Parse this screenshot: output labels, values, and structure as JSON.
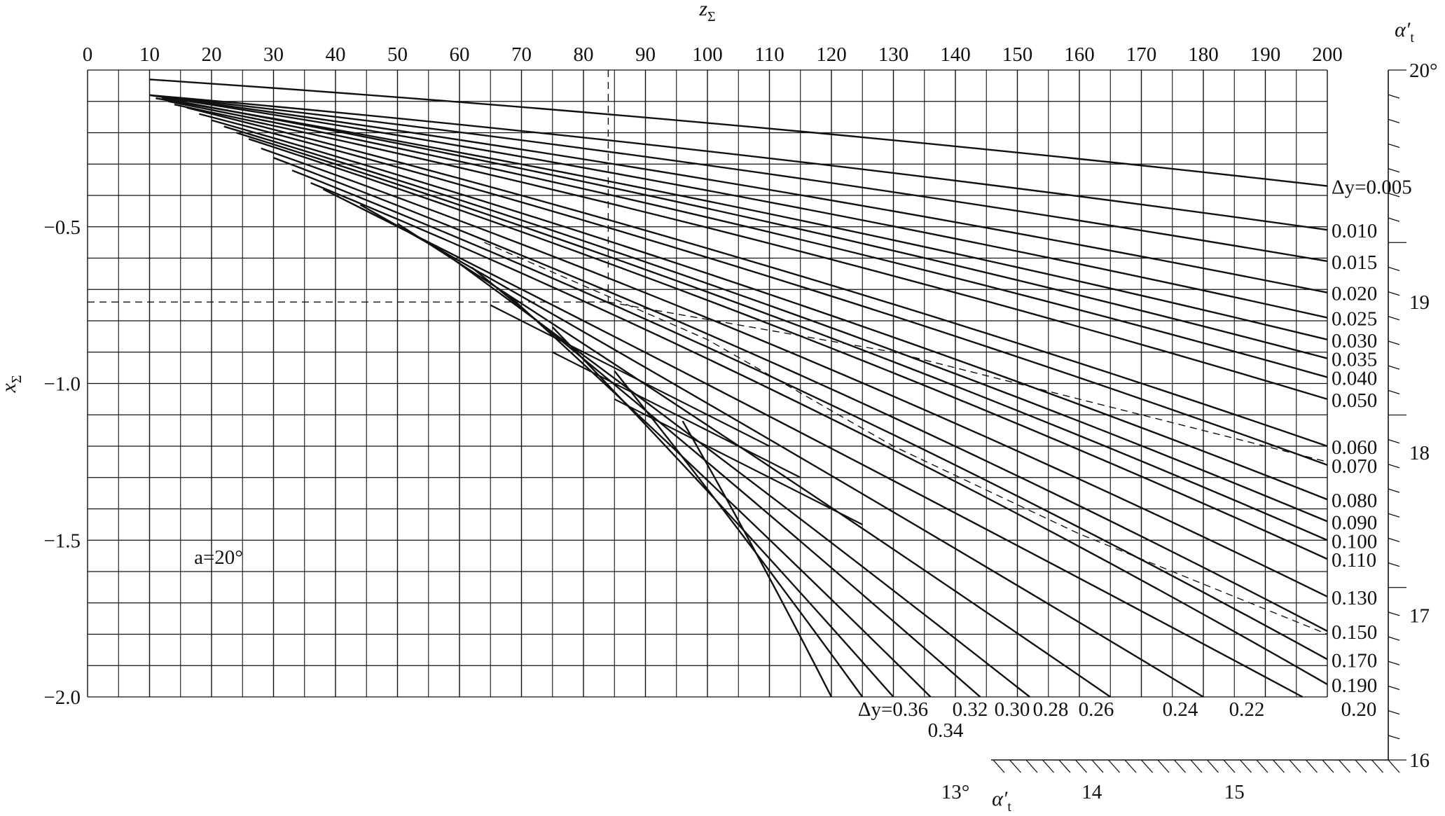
{
  "chart_data": {
    "type": "line",
    "xlabel_main": "z",
    "xlabel_sub": "Σ",
    "ylabel_main": "x",
    "ylabel_sub": "Σ",
    "x_ticks": [
      0,
      10,
      20,
      30,
      40,
      50,
      60,
      70,
      80,
      90,
      100,
      110,
      120,
      130,
      140,
      150,
      160,
      170,
      180,
      190,
      200
    ],
    "y_ticks": [
      {
        "v": -0.5,
        "label": "−0.5"
      },
      {
        "v": -1.0,
        "label": "−1.0"
      },
      {
        "v": -1.5,
        "label": "−1.5"
      },
      {
        "v": -2.0,
        "label": "−2.0"
      }
    ],
    "xlim": [
      0,
      200
    ],
    "ylim": [
      -2.0,
      0.0
    ],
    "grid": true,
    "annotation": "a=20°",
    "right_axis": {
      "label_main": "α′",
      "label_sub": "t",
      "labeled_ticks": [
        {
          "label": "20°",
          "x": 200,
          "y": 0.0
        },
        {
          "label": "19",
          "x": 200,
          "y": -0.74
        },
        {
          "label": "18",
          "x": 200,
          "y": -1.22
        },
        {
          "label": "17",
          "x": 200,
          "y": -1.74
        },
        {
          "label": "16",
          "x": 200,
          "y": -2.2
        }
      ]
    },
    "bottom_axis": {
      "label_main": "α′",
      "label_sub": "t",
      "labeled_ticks": [
        {
          "label": "13°",
          "x": 140,
          "y": -2.24
        },
        {
          "label": "14",
          "x": 162,
          "y": -2.24
        },
        {
          "label": "15",
          "x": 185,
          "y": -2.24
        }
      ]
    },
    "series_right": [
      {
        "label": "Δy=0.005",
        "x0": 10,
        "y0": -0.03,
        "y200": -0.37
      },
      {
        "label": "0.010",
        "x0": 10,
        "y0": -0.08,
        "y200": -0.51
      },
      {
        "label": "0.015",
        "x0": 10,
        "y0": -0.08,
        "y200": -0.61
      },
      {
        "label": "0.020",
        "x0": 10,
        "y0": -0.08,
        "y200": -0.71
      },
      {
        "label": "0.025",
        "x0": 10,
        "y0": -0.08,
        "y200": -0.79
      },
      {
        "label": "0.030",
        "x0": 11,
        "y0": -0.09,
        "y200": -0.86
      },
      {
        "label": "0.035",
        "x0": 12,
        "y0": -0.09,
        "y200": -0.92
      },
      {
        "label": "0.040",
        "x0": 13,
        "y0": -0.1,
        "y200": -0.98
      },
      {
        "label": "0.050",
        "x0": 14,
        "y0": -0.11,
        "y200": -1.05
      },
      {
        "label": "0.060",
        "x0": 16,
        "y0": -0.12,
        "y200": -1.2
      },
      {
        "label": "0.070",
        "x0": 18,
        "y0": -0.14,
        "y200": -1.26
      },
      {
        "label": "0.080",
        "x0": 20,
        "y0": -0.16,
        "y200": -1.37
      },
      {
        "label": "0.090",
        "x0": 22,
        "y0": -0.18,
        "y200": -1.44
      },
      {
        "label": "0.100",
        "x0": 24,
        "y0": -0.2,
        "y200": -1.5
      },
      {
        "label": "0.110",
        "x0": 26,
        "y0": -0.22,
        "y200": -1.56
      },
      {
        "label": "0.130",
        "x0": 28,
        "y0": -0.25,
        "y200": -1.68
      },
      {
        "label": "0.150",
        "x0": 30,
        "y0": -0.28,
        "y200": -1.79
      },
      {
        "label": "0.170",
        "x0": 33,
        "y0": -0.32,
        "y200": -1.88
      },
      {
        "label": "0.190",
        "x0": 36,
        "y0": -0.36,
        "y200": -1.96
      }
    ],
    "series_bottom": [
      {
        "label": "0.20",
        "x0": 38,
        "y0": -0.38,
        "x_end": 196
      },
      {
        "label": "0.22",
        "x0": 44,
        "y0": -0.43,
        "x_end": 180
      },
      {
        "label": "0.24",
        "x0": 50,
        "y0": -0.49,
        "x_end": 165
      },
      {
        "label": "0.26",
        "x0": 56,
        "y0": -0.56,
        "x_end": 152
      },
      {
        "label": "0.28",
        "x0": 62,
        "y0": -0.63,
        "x_end": 144
      },
      {
        "label": "0.30",
        "x0": 68,
        "y0": -0.72,
        "x_end": 136
      },
      {
        "label": "0.32",
        "x0": 75,
        "y0": -0.82,
        "x_end": 130
      },
      {
        "label": "0.34",
        "x0": 85,
        "y0": -0.96,
        "x_end": 125
      },
      {
        "label": "Δy=0.36",
        "x0": 96,
        "y0": -1.12,
        "x_end": 120
      }
    ],
    "extra_lines": [
      {
        "x0": 65,
        "y0": -0.75,
        "x1": 110,
        "y1": -1.2
      },
      {
        "x0": 75,
        "y0": -0.9,
        "x1": 115,
        "y1": -1.3
      },
      {
        "x0": 85,
        "y0": -1.05,
        "x1": 125,
        "y1": -1.45
      }
    ],
    "dashed_lines": [
      {
        "points": [
          [
            0,
            -0.74
          ],
          [
            84,
            -0.74
          ]
        ]
      },
      {
        "points": [
          [
            84,
            0.0
          ],
          [
            84,
            -0.74
          ]
        ]
      },
      {
        "points": [
          [
            64,
            -0.55
          ],
          [
            100,
            -0.86
          ],
          [
            130,
            -1.2
          ],
          [
            160,
            -1.48
          ],
          [
            200,
            -1.8
          ]
        ]
      },
      {
        "points": [
          [
            84,
            -0.74
          ],
          [
            130,
            -0.9
          ],
          [
            160,
            -1.05
          ],
          [
            200,
            -1.25
          ]
        ]
      }
    ]
  },
  "colors": {
    "line": "#111111",
    "grid": "#111111",
    "background": "#ffffff"
  }
}
